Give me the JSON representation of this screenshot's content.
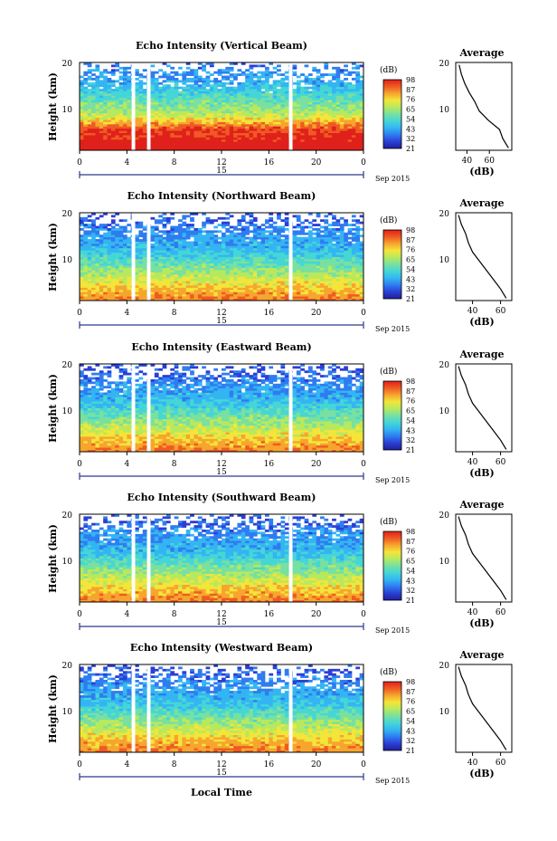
{
  "figure": {
    "xlabel": "Local Time",
    "day_label": "15",
    "date_label": "Sep 2015",
    "x_ticks": [
      "0",
      "4",
      "8",
      "12",
      "16",
      "20",
      "0"
    ],
    "height_label": "Height (km)",
    "height_ticks": [
      "20",
      "10"
    ],
    "colorbar_unit": "(dB)",
    "average_title": "Average",
    "average_xlabel": "(dB)",
    "colorbar_colors": [
      "#20209a",
      "#2b3fd4",
      "#2f7cf0",
      "#34b5f3",
      "#45d6d6",
      "#78e0a0",
      "#b7e95f",
      "#f3e53a",
      "#f7a52e",
      "#ef5a23",
      "#e0201b"
    ]
  },
  "chart_data": [
    {
      "type": "heatmap",
      "title": "Echo Intensity (Vertical Beam)",
      "xlabel": "Local Time",
      "ylabel": "Height (km)",
      "x_range": [
        0,
        24
      ],
      "y_range": [
        1.5,
        20.5
      ],
      "colorbar": {
        "unit": "(dB)",
        "ticks": [
          21,
          32,
          43,
          54,
          65,
          76,
          87,
          98
        ]
      },
      "data_gaps_hours": [
        [
          4.4,
          4.7
        ],
        [
          5.7,
          6.0
        ],
        [
          17.7,
          18.0
        ]
      ],
      "average_profile": {
        "title": "Average",
        "xlabel": "(dB)",
        "x_ticks": [
          40,
          60
        ],
        "xlim": [
          30,
          80
        ],
        "ylim": [
          1.5,
          20.5
        ],
        "heights": [
          2,
          4,
          6,
          8,
          10,
          12,
          14,
          16,
          18,
          20
        ],
        "values": [
          77,
          72,
          69,
          59,
          51,
          47,
          42,
          38,
          35,
          33
        ]
      }
    },
    {
      "type": "heatmap",
      "title": "Echo Intensity (Northward Beam)",
      "xlabel": "Local Time",
      "ylabel": "Height (km)",
      "x_range": [
        0,
        24
      ],
      "y_range": [
        1.5,
        20.5
      ],
      "colorbar": {
        "unit": "(dB)",
        "ticks": [
          21,
          32,
          43,
          54,
          65,
          76,
          87,
          98
        ]
      },
      "data_gaps_hours": [
        [
          4.4,
          4.7
        ],
        [
          5.7,
          6.0
        ],
        [
          17.7,
          18.0
        ]
      ],
      "average_profile": {
        "title": "Average",
        "xlabel": "(dB)",
        "x_ticks": [
          40,
          60
        ],
        "xlim": [
          28,
          68
        ],
        "ylim": [
          1.5,
          20.5
        ],
        "heights": [
          2,
          4,
          6,
          8,
          10,
          12,
          14,
          16,
          18,
          20
        ],
        "values": [
          64,
          60,
          55,
          50,
          45,
          40,
          37,
          35,
          32,
          30
        ]
      }
    },
    {
      "type": "heatmap",
      "title": "Echo Intensity (Eastward Beam)",
      "xlabel": "Local Time",
      "ylabel": "Height (km)",
      "x_range": [
        0,
        24
      ],
      "y_range": [
        1.5,
        20.5
      ],
      "colorbar": {
        "unit": "(dB)",
        "ticks": [
          21,
          32,
          43,
          54,
          65,
          76,
          87,
          98
        ]
      },
      "data_gaps_hours": [
        [
          4.4,
          4.7
        ],
        [
          5.7,
          6.0
        ],
        [
          17.7,
          18.0
        ]
      ],
      "average_profile": {
        "title": "Average",
        "xlabel": "(dB)",
        "x_ticks": [
          40,
          60
        ],
        "xlim": [
          28,
          68
        ],
        "ylim": [
          1.5,
          20.5
        ],
        "heights": [
          2,
          4,
          6,
          8,
          10,
          12,
          14,
          16,
          18,
          20
        ],
        "values": [
          64,
          60,
          55,
          50,
          45,
          40,
          37,
          35,
          32,
          30
        ]
      }
    },
    {
      "type": "heatmap",
      "title": "Echo Intensity (Southward Beam)",
      "xlabel": "Local Time",
      "ylabel": "Height (km)",
      "x_range": [
        0,
        24
      ],
      "y_range": [
        1.5,
        20.5
      ],
      "colorbar": {
        "unit": "(dB)",
        "ticks": [
          21,
          32,
          43,
          54,
          65,
          76,
          87,
          98
        ]
      },
      "data_gaps_hours": [
        [
          4.4,
          4.7
        ],
        [
          5.7,
          6.0
        ],
        [
          17.7,
          18.0
        ]
      ],
      "average_profile": {
        "title": "Average",
        "xlabel": "(dB)",
        "x_ticks": [
          40,
          60
        ],
        "xlim": [
          28,
          68
        ],
        "ylim": [
          1.5,
          20.5
        ],
        "heights": [
          2,
          4,
          6,
          8,
          10,
          12,
          14,
          16,
          18,
          20
        ],
        "values": [
          64,
          60,
          55,
          50,
          45,
          40,
          37,
          35,
          32,
          30
        ]
      }
    },
    {
      "type": "heatmap",
      "title": "Echo Intensity (Westward Beam)",
      "xlabel": "Local Time",
      "ylabel": "Height (km)",
      "x_range": [
        0,
        24
      ],
      "y_range": [
        1.5,
        20.5
      ],
      "colorbar": {
        "unit": "(dB)",
        "ticks": [
          21,
          32,
          43,
          54,
          65,
          76,
          87,
          98
        ]
      },
      "data_gaps_hours": [
        [
          4.4,
          4.7
        ],
        [
          5.7,
          6.0
        ],
        [
          17.7,
          18.0
        ]
      ],
      "average_profile": {
        "title": "Average",
        "xlabel": "(dB)",
        "x_ticks": [
          40,
          60
        ],
        "xlim": [
          28,
          68
        ],
        "ylim": [
          1.5,
          20.5
        ],
        "heights": [
          2,
          4,
          6,
          8,
          10,
          12,
          14,
          16,
          18,
          20
        ],
        "values": [
          64,
          60,
          55,
          50,
          45,
          40,
          37,
          35,
          32,
          30
        ]
      }
    }
  ]
}
